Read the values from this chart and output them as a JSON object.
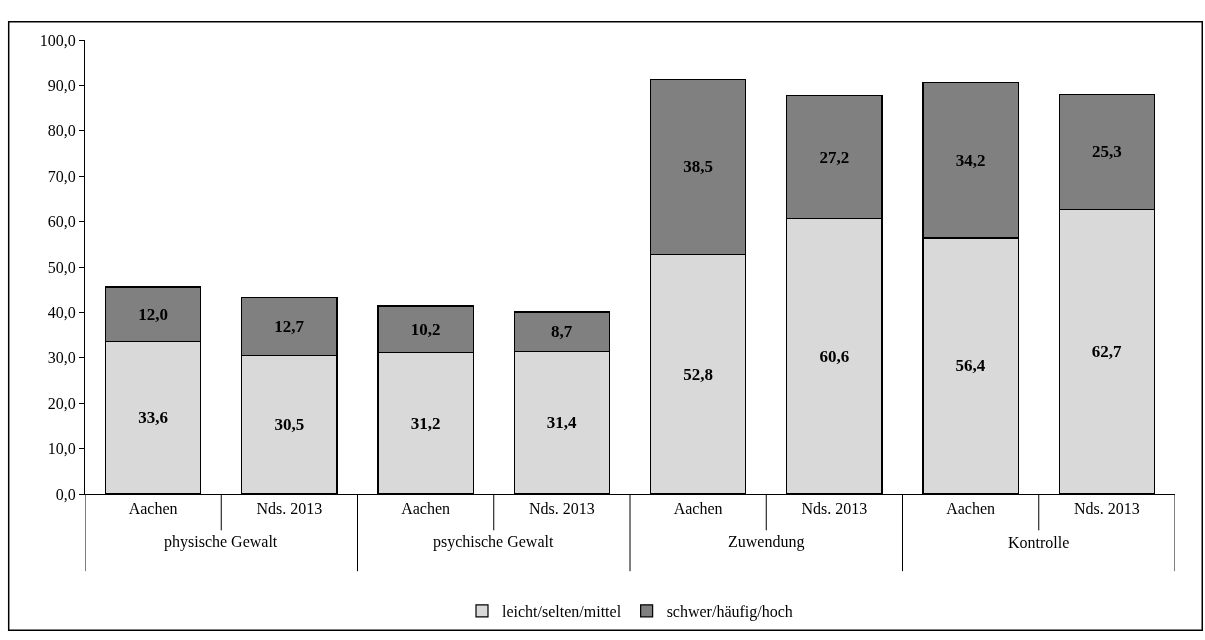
{
  "chart_data": {
    "type": "bar",
    "stacked": true,
    "legend": "bottom",
    "categories": [
      "Aachen",
      "Nds. 2013",
      "Aachen",
      "Nds. 2013",
      "Aachen",
      "Nds. 2013",
      "Aachen",
      "Nds. 2013"
    ],
    "annotations": [
      "physische Gewalt",
      "psychische Gewalt",
      "Zuwendung",
      "Kontrolle"
    ],
    "series": [
      {
        "name": "leicht/selten/mittel",
        "color": "#d9d9d9",
        "values": [
          33.6,
          30.5,
          31.2,
          31.4,
          52.8,
          60.6,
          56.4,
          62.7
        ],
        "value_labels": [
          "33,6",
          "30,5",
          "31,2",
          "31,4",
          "52,8",
          "60,6",
          "56,4",
          "62,7"
        ]
      },
      {
        "name": "schwer/häufig/hoch",
        "color": "#808080",
        "values": [
          12.0,
          12.7,
          10.2,
          8.7,
          38.5,
          27.2,
          34.2,
          25.3
        ],
        "value_labels": [
          "12,0",
          "12,7",
          "10,2",
          "8,7",
          "38,5",
          "27,2",
          "34,2",
          "25,3"
        ]
      }
    ],
    "ylim": [
      0,
      100
    ],
    "yticks": [
      {
        "value": 0,
        "label": "0,0"
      },
      {
        "value": 10,
        "label": "10,0"
      },
      {
        "value": 20,
        "label": "20,0"
      },
      {
        "value": 30,
        "label": "30,0"
      },
      {
        "value": 40,
        "label": "40,0"
      },
      {
        "value": 50,
        "label": "50,0"
      },
      {
        "value": 60,
        "label": "60,0"
      },
      {
        "value": 70,
        "label": "70,0"
      },
      {
        "value": 80,
        "label": "80,0"
      },
      {
        "value": 90,
        "label": "90,0"
      },
      {
        "value": 100,
        "label": "100,0"
      }
    ]
  }
}
